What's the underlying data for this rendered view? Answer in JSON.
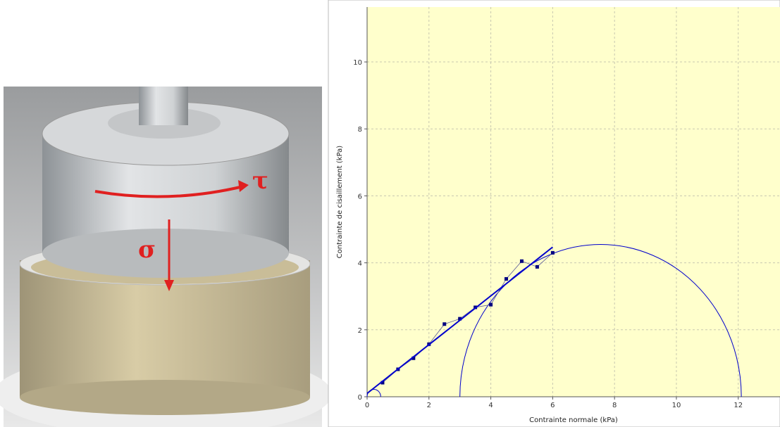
{
  "photo": {
    "shear_symbol": "τ",
    "normal_symbol": "σ"
  },
  "chart_data": {
    "type": "scatter",
    "x_label": "Contrainte normale (kPa)",
    "y_label": "Contrainte de cisaillement (kPa)",
    "x": [
      0.5,
      1,
      1.5,
      2,
      2.5,
      3,
      3.5,
      4,
      4.5,
      5,
      5.5,
      6
    ],
    "values": [
      0.42,
      0.82,
      1.15,
      1.57,
      2.17,
      2.33,
      2.67,
      2.75,
      3.52,
      4.05,
      3.88,
      4.3
    ],
    "color": "#000080",
    "fit_line": {
      "x": [
        0,
        6
      ],
      "values": [
        0.1,
        4.47
      ],
      "color": "#0000cc"
    },
    "circles": [
      {
        "center": 7.55,
        "radius": 4.55,
        "color": "#0000cc"
      },
      {
        "center": 0.22,
        "radius": 0.22,
        "color": "#0000cc"
      }
    ],
    "xlim": [
      0,
      13.35
    ],
    "ylim": [
      0,
      11.64
    ],
    "xticks": [
      0,
      2,
      4,
      6,
      8,
      10,
      12
    ],
    "yticks": [
      0,
      2,
      4,
      6,
      8,
      10
    ],
    "grid": true,
    "background": "#ffffcc"
  }
}
